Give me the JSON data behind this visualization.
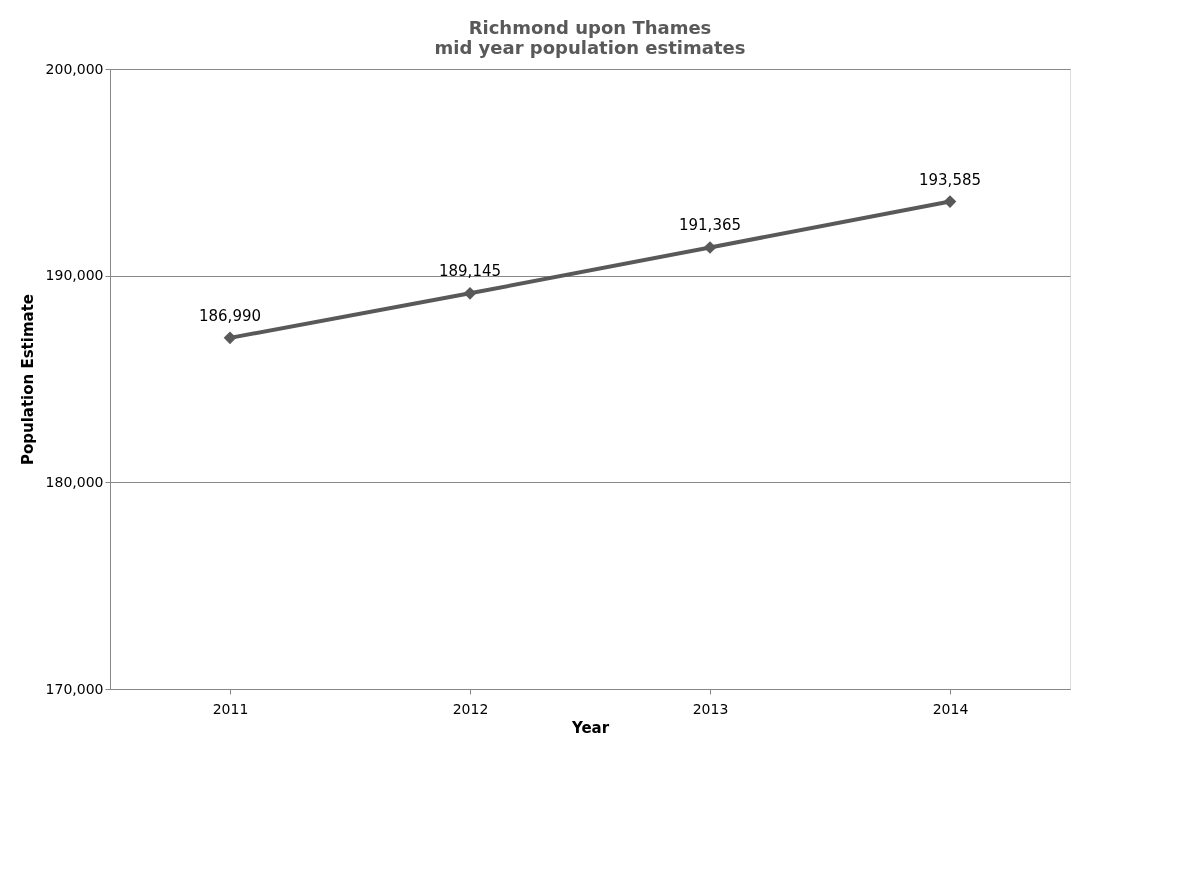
{
  "chart_data": {
    "type": "line",
    "title": "Richmond upon Thames\nmid year population estimates",
    "xlabel": "Year",
    "ylabel": "Population Estimate",
    "categories": [
      "2011",
      "2012",
      "2013",
      "2014"
    ],
    "series": [
      {
        "color": "#595959",
        "values": [
          186990,
          189145,
          191365,
          193585
        ],
        "value_labels": [
          "186,990",
          "189,145",
          "191,365",
          "193,585"
        ]
      }
    ],
    "ylim": [
      170000,
      200000
    ],
    "yticks": [
      {
        "value": 170000,
        "label": "170,000"
      },
      {
        "value": 180000,
        "label": "180,000"
      },
      {
        "value": 190000,
        "label": "190,000"
      },
      {
        "value": 200000,
        "label": "200,000"
      }
    ],
    "grid": "y",
    "marker": "diamond",
    "line_style": "solid"
  }
}
